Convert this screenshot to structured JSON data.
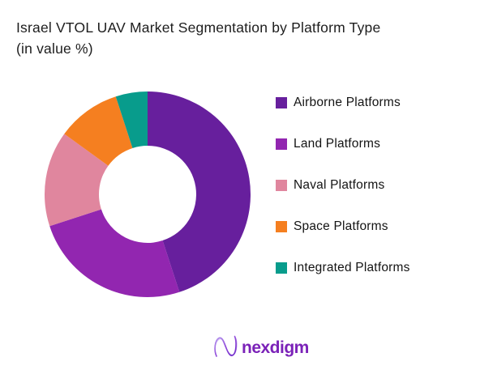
{
  "title": {
    "line1": "Israel VTOL UAV Market Segmentation by Platform Type",
    "line2": "(in value %)"
  },
  "chart_data": {
    "type": "pie",
    "donut": true,
    "title": "Israel VTOL UAV Market Segmentation by Platform Type (in value %)",
    "categories": [
      "Airborne Platforms",
      "Land Platforms",
      "Naval Platforms",
      "Space Platforms",
      "Integrated Platforms"
    ],
    "values": [
      45,
      25,
      15,
      10,
      5
    ],
    "colors": [
      "#671f9d",
      "#9226b0",
      "#e0869e",
      "#f57f20",
      "#089c8c"
    ],
    "legend_position": "right",
    "start_angle_deg": 0,
    "direction": "clockwise",
    "inner_radius_ratio": 0.47,
    "data_labels": "none"
  },
  "logo": {
    "text": "nexdigm",
    "brand_color": "#7b22b8"
  }
}
